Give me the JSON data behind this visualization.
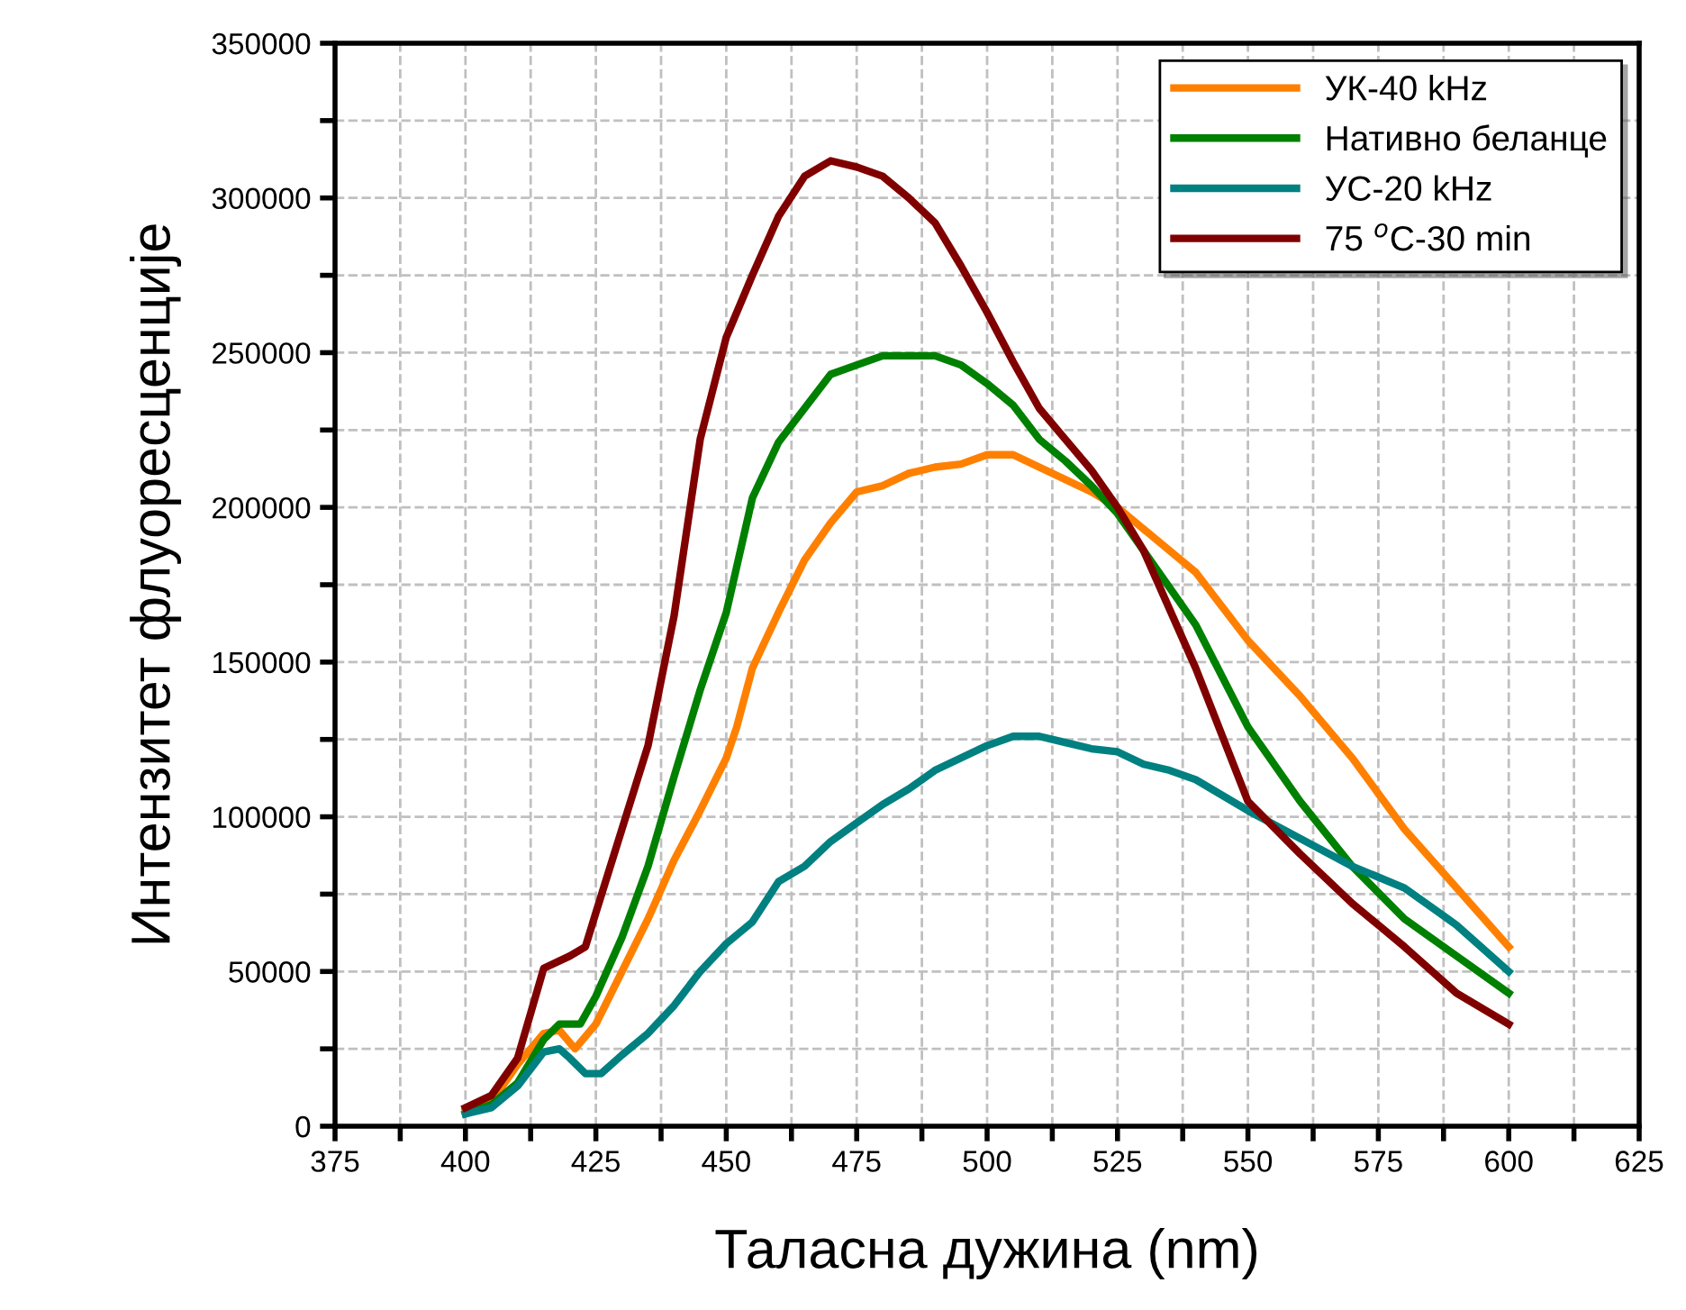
{
  "chart_data": {
    "type": "line",
    "xlabel": "Таласна дужина (nm)",
    "ylabel": "Интензитет флуоресценције",
    "xlim": [
      375,
      625
    ],
    "xticks": [
      375,
      {
        "value": 387.5,
        "label": null
      },
      400,
      {
        "value": 412.5,
        "label": null
      },
      425,
      {
        "value": 437.5,
        "label": null
      },
      450,
      {
        "value": 462.5,
        "label": null
      },
      475,
      {
        "value": 487.5,
        "label": null
      },
      500,
      {
        "value": 512.5,
        "label": null
      },
      525,
      {
        "value": 537.5,
        "label": null
      },
      550,
      {
        "value": 562.5,
        "label": null
      },
      575,
      {
        "value": 587.5,
        "label": null
      },
      600,
      {
        "value": 612.5,
        "label": null
      },
      625
    ],
    "ylim": [
      0,
      350000
    ],
    "yticks": [
      0,
      {
        "value": 25000,
        "label": null
      },
      50000,
      {
        "value": 75000,
        "label": null
      },
      100000,
      {
        "value": 125000,
        "label": null
      },
      150000,
      {
        "value": 175000,
        "label": null
      },
      200000,
      {
        "value": 225000,
        "label": null
      },
      250000,
      {
        "value": 275000,
        "label": null
      },
      300000,
      {
        "value": 325000,
        "label": null
      },
      350000
    ],
    "grid": true,
    "legend": "top right",
    "marker": "none",
    "line_style": "solid",
    "series": [
      {
        "name": "УК-40 kHz",
        "color": "#ff8000",
        "x": [
          400,
          405,
          410,
          415,
          418,
          421,
          425,
          430,
          435,
          440,
          445,
          450,
          452,
          455,
          460,
          465,
          470,
          475,
          480,
          485,
          490,
          495,
          500,
          505,
          510,
          515,
          520,
          525,
          530,
          540,
          550,
          560,
          570,
          580,
          590,
          600
        ],
        "values": [
          5000,
          8000,
          20000,
          30000,
          31000,
          25000,
          33000,
          50000,
          67000,
          86000,
          102000,
          119000,
          129000,
          148000,
          166000,
          183000,
          195000,
          205000,
          207000,
          211000,
          213000,
          214000,
          217000,
          217000,
          213000,
          209000,
          205000,
          200000,
          193000,
          179000,
          157000,
          139000,
          119000,
          96000,
          77000,
          58000
        ]
      },
      {
        "name": "Нативно беланце",
        "color": "#008000",
        "x": [
          400,
          405,
          410,
          415,
          418,
          422,
          425,
          430,
          435,
          440,
          445,
          450,
          455,
          460,
          465,
          470,
          475,
          480,
          485,
          490,
          495,
          500,
          505,
          510,
          515,
          520,
          525,
          530,
          540,
          550,
          560,
          570,
          580,
          590,
          600
        ],
        "values": [
          4000,
          7000,
          14000,
          28000,
          33000,
          33000,
          42000,
          61000,
          84000,
          113000,
          141000,
          166000,
          203000,
          221000,
          232000,
          243000,
          246000,
          249000,
          249000,
          249000,
          246000,
          240000,
          233000,
          222000,
          215000,
          207000,
          198000,
          186000,
          162000,
          129000,
          105000,
          84000,
          67000,
          55000,
          43000
        ]
      },
      {
        "name": "УС-20 kHz",
        "color": "#008080",
        "x": [
          400,
          405,
          410,
          415,
          418,
          420,
          423,
          426,
          430,
          435,
          440,
          445,
          450,
          455,
          460,
          465,
          470,
          475,
          480,
          485,
          490,
          495,
          500,
          505,
          510,
          515,
          520,
          525,
          530,
          535,
          540,
          550,
          560,
          570,
          580,
          590,
          600
        ],
        "values": [
          4000,
          6000,
          13000,
          24000,
          25000,
          22000,
          17000,
          17000,
          23000,
          30000,
          39000,
          50000,
          59000,
          66000,
          79000,
          84000,
          92000,
          98000,
          104000,
          109000,
          115000,
          119000,
          123000,
          126000,
          126000,
          124000,
          122000,
          121000,
          117000,
          115000,
          112000,
          102000,
          93000,
          84000,
          77000,
          65000,
          50000
        ]
      },
      {
        "name": "75 $^{o}$C-30 min",
        "color": "#800000",
        "x": [
          400,
          405,
          410,
          415,
          420,
          423,
          425,
          430,
          435,
          440,
          445,
          450,
          455,
          460,
          465,
          470,
          475,
          480,
          485,
          490,
          495,
          500,
          505,
          510,
          515,
          520,
          525,
          530,
          540,
          550,
          560,
          570,
          580,
          590,
          600
        ],
        "values": [
          6000,
          10000,
          22000,
          51000,
          55000,
          58000,
          69000,
          96000,
          123000,
          165000,
          222000,
          255000,
          275000,
          294000,
          307000,
          312000,
          310000,
          307000,
          300000,
          292000,
          278000,
          263000,
          247000,
          232000,
          222000,
          212000,
          200000,
          186000,
          148000,
          105000,
          88000,
          72000,
          58000,
          43000,
          33000
        ]
      }
    ]
  }
}
